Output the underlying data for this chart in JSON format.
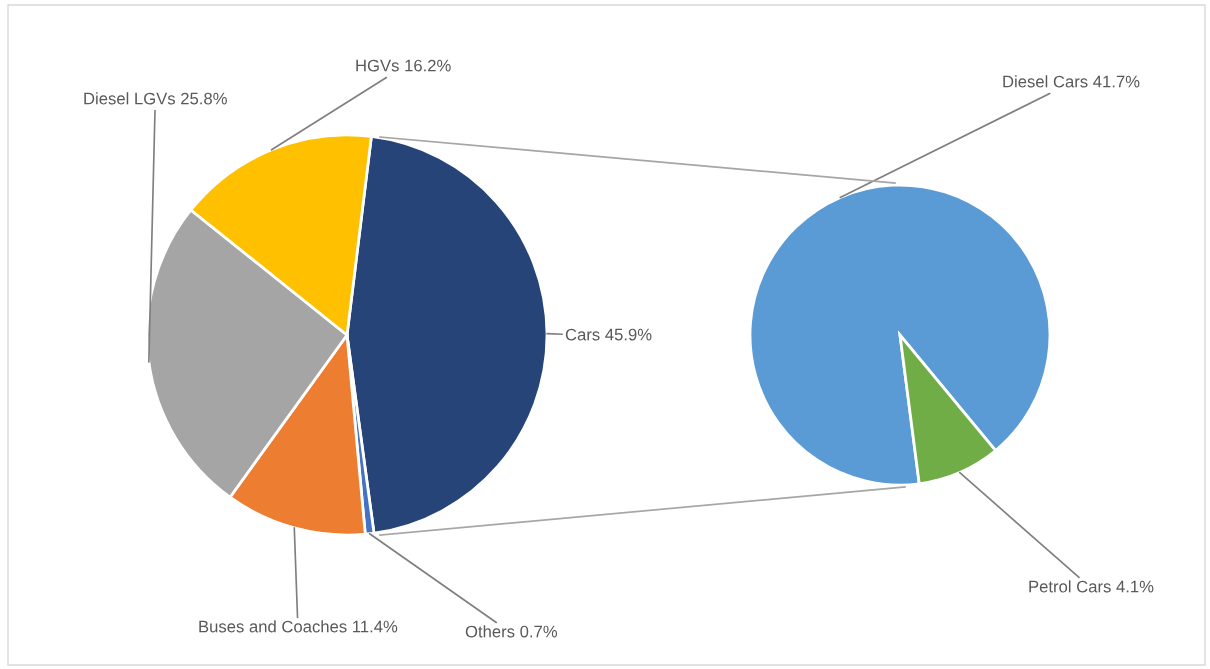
{
  "chart_data": [
    {
      "type": "pie",
      "categories": [
        "Cars",
        "Others",
        "Buses and Coaches",
        "Diesel LGVs",
        "HGVs"
      ],
      "values": [
        45.9,
        0.7,
        11.4,
        25.8,
        16.2
      ],
      "value_labels": [
        "45.9%",
        "0.7%",
        "11.4%",
        "25.8%",
        "16.2%"
      ],
      "colors": [
        "#264478",
        "#4472c4",
        "#ed7d31",
        "#a5a5a5",
        "#ffc000"
      ],
      "legend": false
    },
    {
      "type": "pie",
      "categories": [
        "Diesel Cars",
        "Petrol Cars"
      ],
      "values": [
        41.7,
        4.1
      ],
      "value_labels": [
        "41.7%",
        "4.1%"
      ],
      "colors": [
        "#5b9bd5",
        "#70ad47"
      ],
      "legend": false
    }
  ]
}
